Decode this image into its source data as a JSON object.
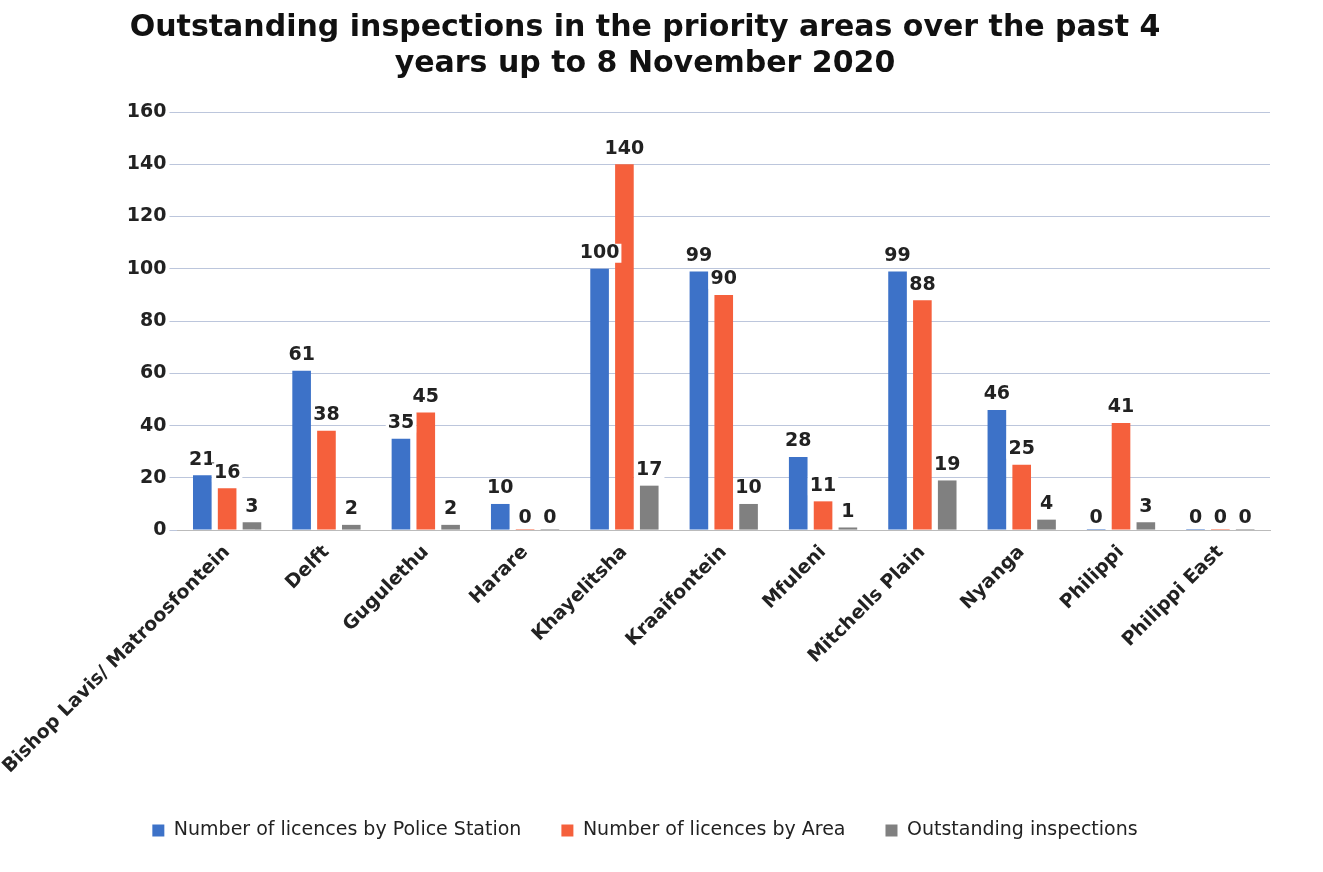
{
  "chart_data": {
    "type": "bar",
    "title": "Outstanding inspections in the priority areas over the past 4 years up to 8 November 2020",
    "categories": [
      "Bishop Lavis/ Matroosfontein",
      "Delft",
      "Gugulethu",
      "Harare",
      "Khayelitsha",
      "Kraaifontein",
      "Mfuleni",
      "Mitchells Plain",
      "Nyanga",
      "Philippi",
      "Philippi East"
    ],
    "series": [
      {
        "name": "Number of licences by Police Station",
        "color": "#3d72c8",
        "values": [
          21,
          61,
          35,
          10,
          100,
          99,
          28,
          99,
          46,
          0,
          0
        ]
      },
      {
        "name": "Number of licences by Area",
        "color": "#f5603c",
        "values": [
          16,
          38,
          45,
          0,
          140,
          90,
          11,
          88,
          25,
          41,
          0
        ]
      },
      {
        "name": "Outstanding inspections",
        "color": "#808080",
        "values": [
          3,
          2,
          2,
          0,
          17,
          10,
          1,
          19,
          4,
          3,
          0
        ]
      }
    ],
    "ylim": [
      0,
      160
    ],
    "yticks": [
      0,
      20,
      40,
      60,
      80,
      100,
      120,
      140,
      160
    ],
    "grid": "y",
    "legend": "bottom",
    "data_labels": true
  }
}
